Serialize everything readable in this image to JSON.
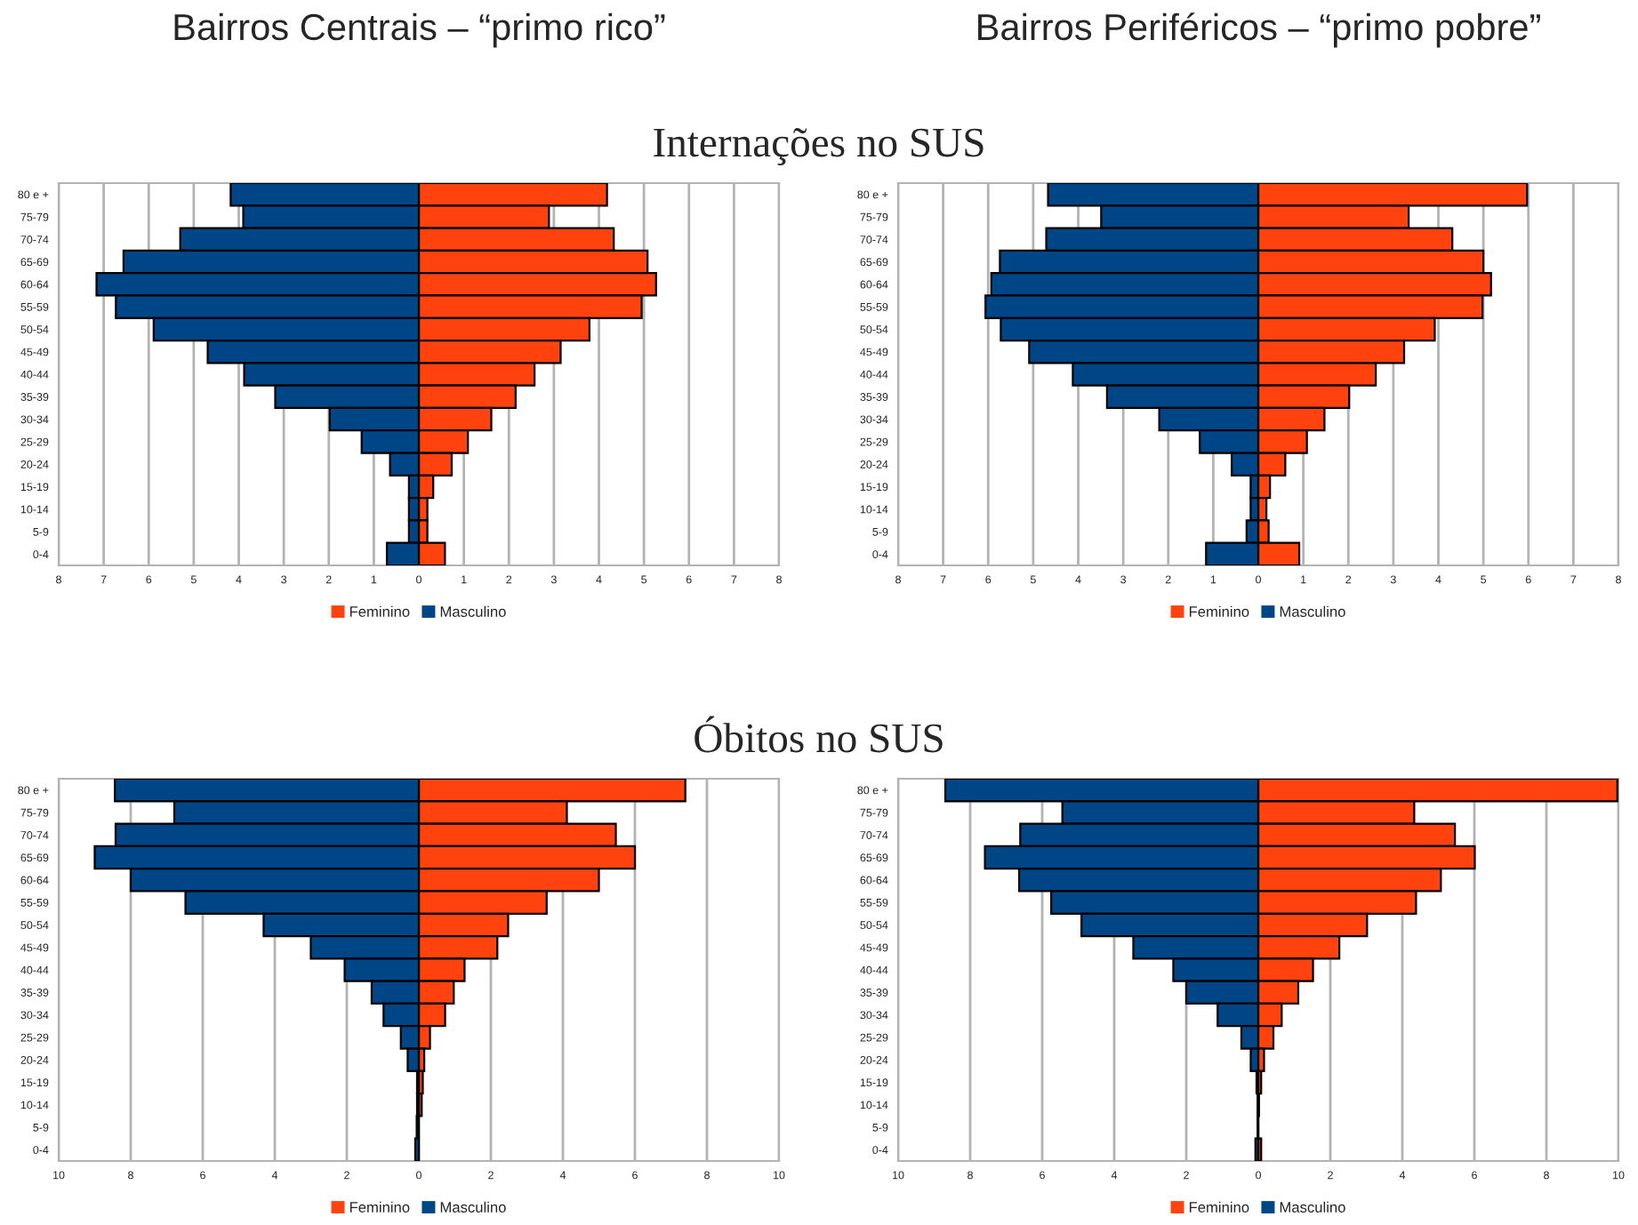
{
  "chart_data": [
    {
      "type": "bar",
      "orientation": "horizontal",
      "stacked": true,
      "title": "Bairros Centrais – “primo rico”",
      "annotations": [
        "Internações no SUS"
      ],
      "categories": [
        "80 e +",
        "75-79",
        "70-74",
        "65-69",
        "60-64",
        "55-59",
        "50-54",
        "45-49",
        "40-44",
        "35-39",
        "30-34",
        "25-29",
        "20-24",
        "15-19",
        "10-14",
        "5-9",
        "0-4"
      ],
      "series": [
        {
          "name": "Feminino",
          "color": "#ff420e",
          "values": [
            4.18,
            2.89,
            4.33,
            5.08,
            5.27,
            4.95,
            3.79,
            3.15,
            2.57,
            2.15,
            1.61,
            1.09,
            0.73,
            0.32,
            0.19,
            0.19,
            0.58
          ]
        },
        {
          "name": "Masculino",
          "color": "#004586",
          "values": [
            -4.18,
            -3.9,
            -5.3,
            -6.56,
            -7.16,
            -6.73,
            -5.89,
            -4.69,
            -3.88,
            -3.19,
            -1.98,
            -1.27,
            -0.64,
            -0.22,
            -0.22,
            -0.22,
            -0.71
          ]
        }
      ],
      "xlim": [
        -8,
        8
      ],
      "xticks": [
        {
          "value": -8,
          "label": "8"
        },
        {
          "value": -7,
          "label": "7"
        },
        {
          "value": -6,
          "label": "6"
        },
        {
          "value": -5,
          "label": "5"
        },
        {
          "value": -4,
          "label": "4"
        },
        {
          "value": -3,
          "label": "3"
        },
        {
          "value": -2,
          "label": "2"
        },
        {
          "value": -1,
          "label": "1"
        },
        0,
        1,
        2,
        3,
        4,
        5,
        6,
        7,
        8
      ],
      "grid": "x",
      "legend": "bottom"
    },
    {
      "type": "bar",
      "orientation": "horizontal",
      "stacked": true,
      "title": "Bairros Periféricos – “primo pobre”",
      "categories": [
        "80 e +",
        "75-79",
        "70-74",
        "65-69",
        "60-64",
        "55-59",
        "50-54",
        "45-49",
        "40-44",
        "35-39",
        "30-34",
        "25-29",
        "20-24",
        "15-19",
        "10-14",
        "5-9",
        "0-4"
      ],
      "series": [
        {
          "name": "Feminino",
          "color": "#ff420e",
          "values": [
            5.97,
            3.34,
            4.31,
            5.0,
            5.17,
            4.98,
            3.92,
            3.24,
            2.61,
            2.02,
            1.47,
            1.08,
            0.6,
            0.26,
            0.18,
            0.23,
            0.91
          ]
        },
        {
          "name": "Masculino",
          "color": "#004586",
          "values": [
            -4.67,
            -3.49,
            -4.71,
            -5.74,
            -5.93,
            -6.06,
            -5.72,
            -5.09,
            -4.12,
            -3.36,
            -2.2,
            -1.3,
            -0.59,
            -0.17,
            -0.17,
            -0.26,
            -1.16
          ]
        }
      ],
      "xlim": [
        -8,
        8
      ],
      "xticks": [
        {
          "value": -8,
          "label": "8"
        },
        {
          "value": -7,
          "label": "7"
        },
        {
          "value": -6,
          "label": "6"
        },
        {
          "value": -5,
          "label": "5"
        },
        {
          "value": -4,
          "label": "4"
        },
        {
          "value": -3,
          "label": "3"
        },
        {
          "value": -2,
          "label": "2"
        },
        {
          "value": -1,
          "label": "1"
        },
        0,
        1,
        2,
        3,
        4,
        5,
        6,
        7,
        8
      ],
      "grid": "x",
      "legend": "bottom"
    },
    {
      "type": "bar",
      "orientation": "horizontal",
      "stacked": true,
      "annotations": [
        "Óbitos no SUS"
      ],
      "categories": [
        "80 e +",
        "75-79",
        "70-74",
        "65-69",
        "60-64",
        "55-59",
        "50-54",
        "45-49",
        "40-44",
        "35-39",
        "30-34",
        "25-29",
        "20-24",
        "15-19",
        "10-14",
        "5-9",
        "0-4"
      ],
      "series": [
        {
          "name": "Feminino",
          "color": "#ff420e",
          "values": [
            7.4,
            4.11,
            5.47,
            6.0,
            5.0,
            3.55,
            2.48,
            2.18,
            1.27,
            0.97,
            0.73,
            0.31,
            0.15,
            0.11,
            0.08,
            null,
            null
          ]
        },
        {
          "name": "Masculino",
          "color": "#004586",
          "values": [
            -8.44,
            -6.79,
            -8.42,
            -9.0,
            -8.0,
            -6.48,
            -4.31,
            -3.0,
            -2.06,
            -1.31,
            -0.98,
            -0.5,
            -0.31,
            -0.05,
            -0.05,
            -0.06,
            -0.1
          ]
        }
      ],
      "xlim": [
        -10,
        10
      ],
      "xticks": [
        {
          "value": -10,
          "label": "10"
        },
        {
          "value": -8,
          "label": "8"
        },
        {
          "value": -6,
          "label": "6"
        },
        {
          "value": -4,
          "label": "4"
        },
        {
          "value": -2,
          "label": "2"
        },
        0,
        2,
        4,
        6,
        8,
        10
      ],
      "grid": "x",
      "legend": "bottom"
    },
    {
      "type": "bar",
      "orientation": "horizontal",
      "stacked": true,
      "categories": [
        "80 e +",
        "75-79",
        "70-74",
        "65-69",
        "60-64",
        "55-59",
        "50-54",
        "45-49",
        "40-44",
        "35-39",
        "30-34",
        "25-29",
        "20-24",
        "15-19",
        "10-14",
        "5-9",
        "0-4"
      ],
      "series": [
        {
          "name": "Feminino",
          "color": "#ff420e",
          "values": [
            9.97,
            4.33,
            5.46,
            6.01,
            5.07,
            4.38,
            3.02,
            2.25,
            1.52,
            1.11,
            0.65,
            0.42,
            0.16,
            0.08,
            0.02,
            null,
            0.08
          ]
        },
        {
          "name": "Masculino",
          "color": "#004586",
          "values": [
            -8.69,
            -5.44,
            -6.61,
            -7.59,
            -6.64,
            -5.75,
            -4.91,
            -3.47,
            -2.36,
            -2.0,
            -1.13,
            -0.47,
            -0.21,
            -0.05,
            -0.02,
            -0.02,
            -0.08
          ]
        }
      ],
      "xlim": [
        -10,
        10
      ],
      "xticks": [
        {
          "value": -10,
          "label": "10"
        },
        {
          "value": -8,
          "label": "8"
        },
        {
          "value": -6,
          "label": "6"
        },
        {
          "value": -4,
          "label": "4"
        },
        {
          "value": -2,
          "label": "2"
        },
        0,
        2,
        4,
        6,
        8,
        10
      ],
      "grid": "x",
      "legend": "bottom"
    }
  ]
}
